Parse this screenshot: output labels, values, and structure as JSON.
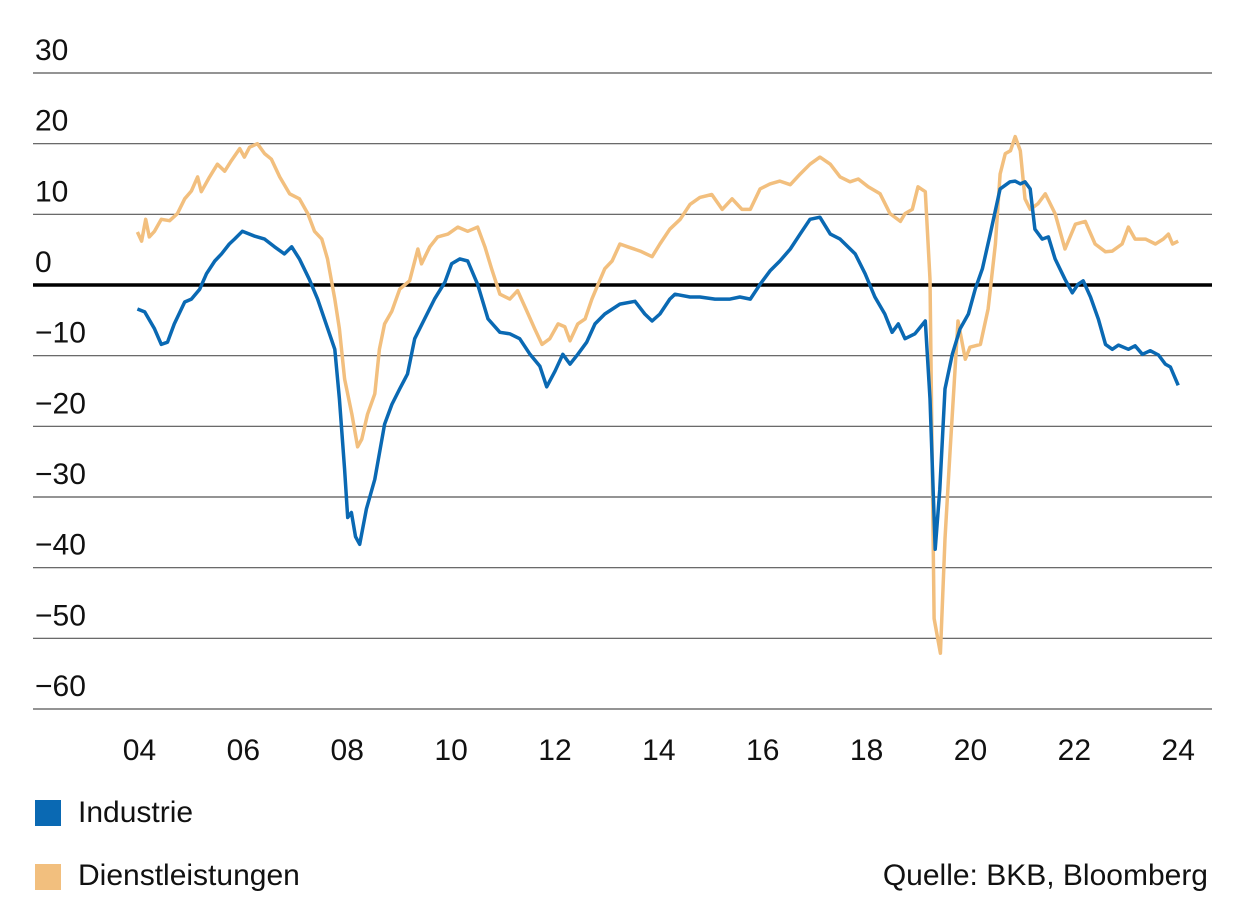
{
  "chart_data": {
    "type": "line",
    "source": "Quelle: BKB, Bloomberg",
    "xlim": [
      2001.95,
      2024.65
    ],
    "xticks": [
      {
        "value": 2004,
        "label": "04"
      },
      {
        "value": 2006,
        "label": "06"
      },
      {
        "value": 2008,
        "label": "08"
      },
      {
        "value": 2010,
        "label": "10"
      },
      {
        "value": 2012,
        "label": "12"
      },
      {
        "value": 2014,
        "label": "14"
      },
      {
        "value": 2016,
        "label": "16"
      },
      {
        "value": 2018,
        "label": "18"
      },
      {
        "value": 2020,
        "label": "20"
      },
      {
        "value": 2022,
        "label": "22"
      },
      {
        "value": 2024,
        "label": "24"
      }
    ],
    "ylim": [
      -60,
      30
    ],
    "yticks": [
      {
        "value": -60,
        "label": "−60"
      },
      {
        "value": -50,
        "label": "−50"
      },
      {
        "value": -40,
        "label": "−40"
      },
      {
        "value": -30,
        "label": "−30"
      },
      {
        "value": -20,
        "label": "−20"
      },
      {
        "value": -10,
        "label": "−10"
      },
      0,
      10,
      20,
      30
    ],
    "grid": true,
    "series": [
      {
        "name": "Industrie",
        "color": "#0a69b3",
        "x": [
          2003.96,
          2004.1,
          2004.29,
          2004.42,
          2004.54,
          2004.67,
          2004.87,
          2005.0,
          2005.16,
          2005.29,
          2005.45,
          2005.58,
          2005.73,
          2005.83,
          2005.98,
          2006.22,
          2006.41,
          2006.6,
          2006.79,
          2006.93,
          2007.08,
          2007.27,
          2007.43,
          2007.56,
          2007.76,
          2007.85,
          2007.95,
          2008.01,
          2008.08,
          2008.16,
          2008.24,
          2008.37,
          2008.53,
          2008.72,
          2008.86,
          2009.01,
          2009.16,
          2009.3,
          2009.49,
          2009.68,
          2009.88,
          2010.01,
          2010.17,
          2010.32,
          2010.51,
          2010.71,
          2010.94,
          2011.13,
          2011.32,
          2011.52,
          2011.71,
          2011.84,
          2012.0,
          2012.15,
          2012.29,
          2012.44,
          2012.61,
          2012.77,
          2012.96,
          2013.25,
          2013.54,
          2013.73,
          2013.87,
          2014.02,
          2014.21,
          2014.31,
          2014.6,
          2014.79,
          2015.08,
          2015.37,
          2015.56,
          2015.76,
          2015.95,
          2016.14,
          2016.33,
          2016.53,
          2016.72,
          2016.91,
          2017.1,
          2017.3,
          2017.49,
          2017.78,
          2017.97,
          2018.16,
          2018.35,
          2018.49,
          2018.61,
          2018.74,
          2018.93,
          2019.13,
          2019.22,
          2019.32,
          2019.41,
          2019.51,
          2019.65,
          2019.8,
          2019.96,
          2020.09,
          2020.23,
          2020.38,
          2020.57,
          2020.76,
          2020.86,
          2020.96,
          2021.05,
          2021.15,
          2021.24,
          2021.38,
          2021.5,
          2021.63,
          2021.82,
          2021.96,
          2022.07,
          2022.17,
          2022.31,
          2022.46,
          2022.6,
          2022.73,
          2022.85,
          2023.04,
          2023.17,
          2023.31,
          2023.46,
          2023.62,
          2023.75,
          2023.85,
          2024.0
        ],
        "values": [
          -3.4,
          -3.8,
          -6.2,
          -8.4,
          -8.1,
          -5.5,
          -2.4,
          -2.0,
          -0.6,
          1.6,
          3.4,
          4.4,
          5.8,
          6.5,
          7.6,
          6.9,
          6.5,
          5.4,
          4.4,
          5.4,
          3.7,
          0.8,
          -2.0,
          -4.8,
          -9.1,
          -16.1,
          -26.1,
          -32.9,
          -32.2,
          -35.6,
          -36.7,
          -31.7,
          -27.5,
          -19.7,
          -16.9,
          -14.7,
          -12.6,
          -7.6,
          -4.8,
          -2.0,
          0.4,
          3.0,
          3.7,
          3.4,
          0.1,
          -4.8,
          -6.7,
          -6.9,
          -7.6,
          -9.8,
          -11.5,
          -14.4,
          -12.2,
          -9.8,
          -11.2,
          -9.8,
          -8.1,
          -5.5,
          -4.1,
          -2.7,
          -2.3,
          -4.1,
          -5.1,
          -4.1,
          -2.0,
          -1.3,
          -1.7,
          -1.7,
          -2.0,
          -2.0,
          -1.7,
          -2.0,
          0.1,
          2.0,
          3.4,
          5.1,
          7.2,
          9.3,
          9.6,
          7.2,
          6.5,
          4.4,
          1.6,
          -1.7,
          -4.1,
          -6.7,
          -5.5,
          -7.6,
          -6.9,
          -5.1,
          -16.1,
          -37.4,
          -28.9,
          -14.7,
          -9.8,
          -6.2,
          -4.1,
          -0.6,
          2.3,
          7.2,
          13.6,
          14.6,
          14.7,
          14.3,
          14.6,
          13.6,
          7.9,
          6.5,
          6.8,
          3.7,
          0.8,
          -1.1,
          0.1,
          0.6,
          -1.7,
          -4.8,
          -8.4,
          -9.1,
          -8.5,
          -9.1,
          -8.6,
          -9.8,
          -9.3,
          -9.9,
          -11.2,
          -11.6,
          -14.2
        ]
      },
      {
        "name": "Dienstleistungen",
        "color": "#f2bf7e",
        "x": [
          2003.96,
          2004.04,
          2004.12,
          2004.19,
          2004.29,
          2004.42,
          2004.58,
          2004.73,
          2004.87,
          2005.0,
          2005.12,
          2005.19,
          2005.35,
          2005.5,
          2005.64,
          2005.77,
          2005.93,
          2006.02,
          2006.12,
          2006.27,
          2006.41,
          2006.54,
          2006.7,
          2006.89,
          2007.08,
          2007.24,
          2007.37,
          2007.51,
          2007.62,
          2007.76,
          2007.85,
          2007.95,
          2008.09,
          2008.2,
          2008.28,
          2008.39,
          2008.53,
          2008.62,
          2008.72,
          2008.86,
          2009.01,
          2009.2,
          2009.36,
          2009.43,
          2009.59,
          2009.74,
          2009.94,
          2010.13,
          2010.32,
          2010.51,
          2010.65,
          2010.78,
          2010.94,
          2011.13,
          2011.28,
          2011.44,
          2011.61,
          2011.75,
          2011.9,
          2012.06,
          2012.19,
          2012.29,
          2012.44,
          2012.58,
          2012.71,
          2012.83,
          2012.96,
          2013.1,
          2013.25,
          2013.4,
          2013.64,
          2013.87,
          2014.02,
          2014.21,
          2014.41,
          2014.6,
          2014.79,
          2015.02,
          2015.22,
          2015.41,
          2015.6,
          2015.76,
          2015.95,
          2016.14,
          2016.33,
          2016.53,
          2016.72,
          2016.91,
          2017.1,
          2017.3,
          2017.49,
          2017.68,
          2017.84,
          2018.03,
          2018.26,
          2018.45,
          2018.65,
          2018.74,
          2018.88,
          2018.99,
          2019.13,
          2019.22,
          2019.3,
          2019.42,
          2019.51,
          2019.61,
          2019.76,
          2019.9,
          2019.99,
          2020.19,
          2020.34,
          2020.48,
          2020.57,
          2020.67,
          2020.77,
          2020.86,
          2020.96,
          2021.05,
          2021.15,
          2021.3,
          2021.44,
          2021.63,
          2021.82,
          2022.02,
          2022.21,
          2022.4,
          2022.6,
          2022.73,
          2022.92,
          2023.04,
          2023.17,
          2023.37,
          2023.56,
          2023.71,
          2023.81,
          2023.89,
          2024.0
        ],
        "values": [
          7.5,
          6.2,
          9.3,
          6.8,
          7.6,
          9.3,
          9.1,
          10.1,
          12.2,
          13.3,
          15.3,
          13.2,
          15.3,
          17.1,
          16.1,
          17.6,
          19.3,
          18.1,
          19.5,
          20.0,
          18.6,
          17.8,
          15.3,
          12.9,
          12.2,
          10.1,
          7.6,
          6.5,
          3.7,
          -2.0,
          -6.2,
          -13.3,
          -18.3,
          -22.9,
          -21.8,
          -18.3,
          -15.4,
          -9.1,
          -5.5,
          -3.7,
          -0.6,
          0.6,
          5.1,
          3.0,
          5.4,
          6.8,
          7.2,
          8.2,
          7.6,
          8.2,
          5.4,
          2.3,
          -1.3,
          -2.0,
          -0.8,
          -3.4,
          -6.2,
          -8.4,
          -7.6,
          -5.5,
          -5.9,
          -7.9,
          -5.5,
          -4.8,
          -2.0,
          0.1,
          2.3,
          3.4,
          5.8,
          5.4,
          4.8,
          4.0,
          5.8,
          7.9,
          9.3,
          11.4,
          12.4,
          12.8,
          10.7,
          12.2,
          10.7,
          10.7,
          13.6,
          14.3,
          14.7,
          14.2,
          15.7,
          17.1,
          18.1,
          17.1,
          15.3,
          14.6,
          15.0,
          13.9,
          12.9,
          10.1,
          9.0,
          10.1,
          10.7,
          13.9,
          13.2,
          0.8,
          -47.2,
          -52.1,
          -35.9,
          -23.2,
          -5.1,
          -10.5,
          -8.8,
          -8.4,
          -3.4,
          5.8,
          15.7,
          18.6,
          19.0,
          21.0,
          19.0,
          12.2,
          10.7,
          11.5,
          12.9,
          10.1,
          5.1,
          8.6,
          9.0,
          5.8,
          4.7,
          4.8,
          5.8,
          8.2,
          6.5,
          6.5,
          5.8,
          6.5,
          7.2,
          5.8,
          6.2
        ]
      }
    ]
  }
}
